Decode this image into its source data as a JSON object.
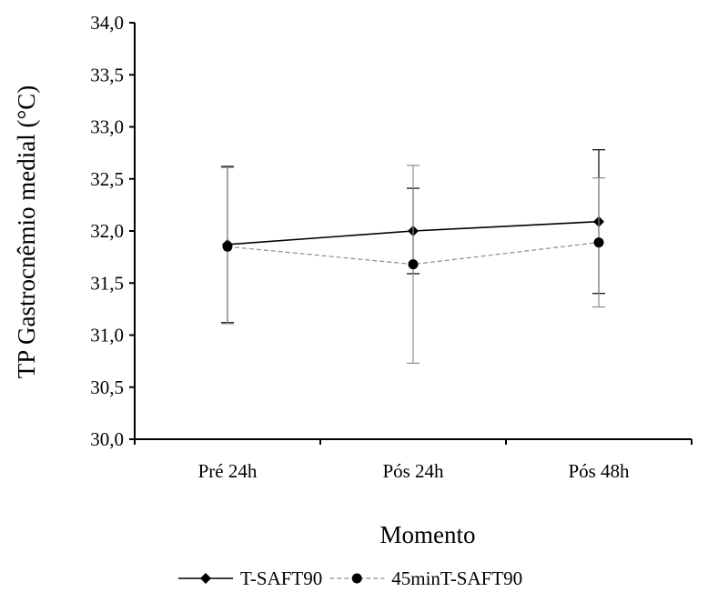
{
  "chart_data": {
    "type": "line",
    "title": "",
    "xlabel": "Momento",
    "ylabel": "TP Gastrocnêmio medial (°C)",
    "categories": [
      "Pré 24h",
      "Pós 24h",
      "Pós 48h"
    ],
    "ylim": [
      30.0,
      34.0
    ],
    "yticks": [
      30.0,
      30.5,
      31.0,
      31.5,
      32.0,
      32.5,
      33.0,
      33.5,
      34.0
    ],
    "ytick_labels": [
      "30,0",
      "30,5",
      "31,0",
      "31,5",
      "32,0",
      "32,5",
      "33,0",
      "33,5",
      "34,0"
    ],
    "grid": false,
    "legend_position": "bottom",
    "series": [
      {
        "name": "T-SAFT90",
        "values": [
          31.87,
          32.0,
          32.09
        ],
        "error_low": [
          31.12,
          31.59,
          31.4
        ],
        "error_high": [
          32.62,
          32.41,
          32.78
        ],
        "color": "#000000",
        "line_style": "solid",
        "marker": "diamond"
      },
      {
        "name": "45minT-SAFT90",
        "values": [
          31.85,
          31.68,
          31.89
        ],
        "error_low": [
          31.11,
          30.73,
          31.27
        ],
        "error_high": [
          32.61,
          32.63,
          32.51
        ],
        "color": "#8c8c8c",
        "line_style": "dashed",
        "marker": "circle"
      }
    ]
  }
}
